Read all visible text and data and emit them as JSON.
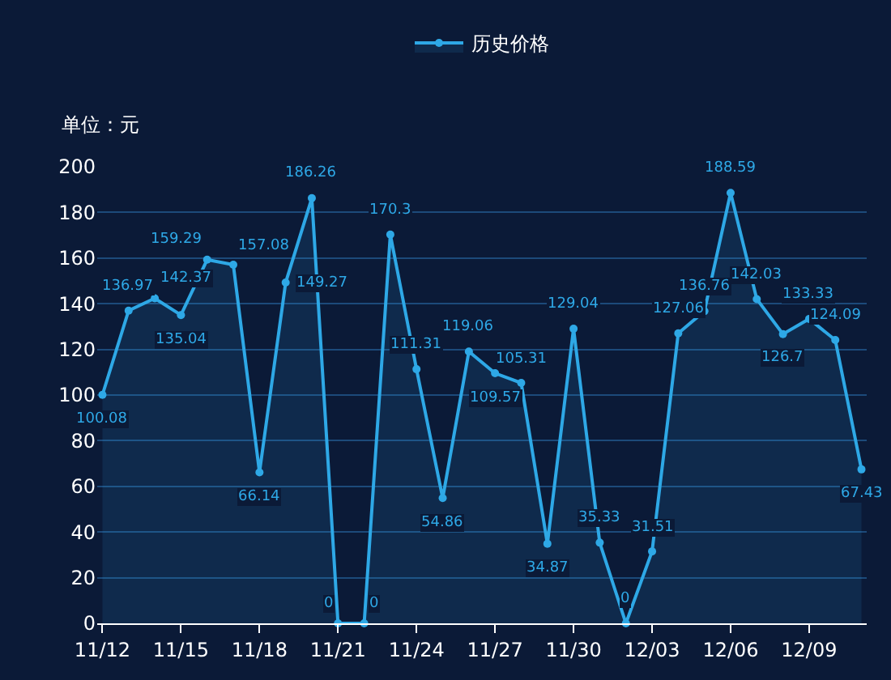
{
  "chart_data": {
    "type": "area",
    "ylabel": "单位：元",
    "categories": [
      "11/12",
      null,
      null,
      "11/15",
      null,
      null,
      "11/18",
      null,
      null,
      "11/21",
      null,
      null,
      "11/24",
      null,
      null,
      "11/27",
      null,
      null,
      "11/30",
      null,
      null,
      "12/03",
      null,
      null,
      "12/06",
      null,
      null,
      "12/09",
      null,
      null
    ],
    "series": [
      {
        "name": "历史价格",
        "color": "#2ea8e6",
        "values": [
          100.08,
          136.97,
          142.37,
          135.04,
          159.29,
          157.08,
          66.14,
          149.27,
          186.26,
          0,
          0,
          170.3,
          111.31,
          54.86,
          119.06,
          109.57,
          105.31,
          34.87,
          129.04,
          35.33,
          0,
          31.51,
          127.06,
          136.76,
          188.59,
          142.03,
          126.7,
          133.33,
          124.09,
          67.43
        ]
      }
    ],
    "ylim": [
      0,
      200
    ],
    "yticks": [
      0,
      20,
      40,
      60,
      80,
      100,
      120,
      140,
      160,
      180,
      200
    ],
    "grid": "y",
    "legend": "top",
    "marker": "circle",
    "line_style": "solid",
    "data_labels": true
  }
}
